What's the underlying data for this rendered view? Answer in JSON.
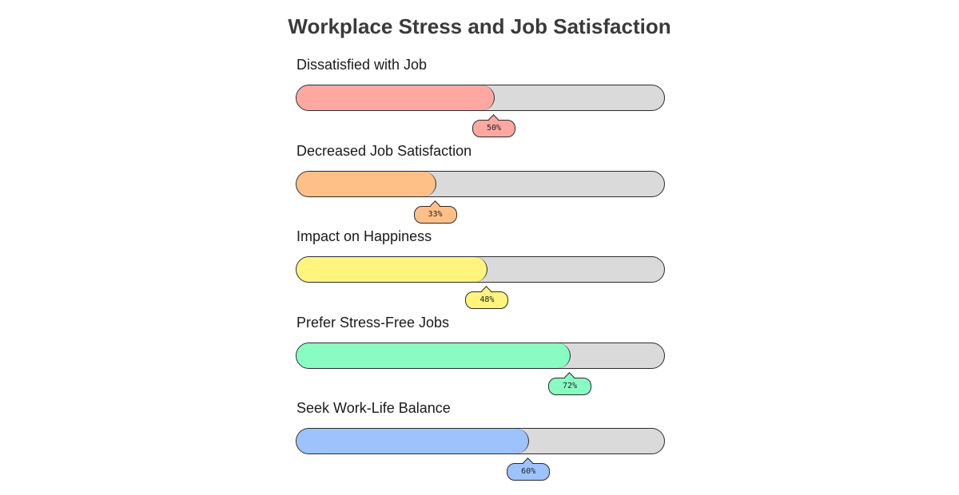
{
  "chart_data": {
    "type": "bar",
    "orientation": "horizontal progress bars",
    "title": "Workplace Stress and Job Satisfaction",
    "xlim": [
      0,
      100
    ],
    "unit": "%",
    "track_color": "#dadada",
    "categories": [
      "Dissatisfied with Job",
      "Decreased Job Satisfaction",
      "Impact on Happiness",
      "Prefer Stress-Free Jobs",
      "Seek Work-Life Balance"
    ],
    "values": [
      50,
      33,
      48,
      72,
      60
    ],
    "value_labels": [
      "50%",
      "33%",
      "48%",
      "72%",
      "60%"
    ],
    "colors": [
      "#ffa8a2",
      "#ffc088",
      "#fff47e",
      "#88fcc2",
      "#9dc2fc"
    ]
  }
}
